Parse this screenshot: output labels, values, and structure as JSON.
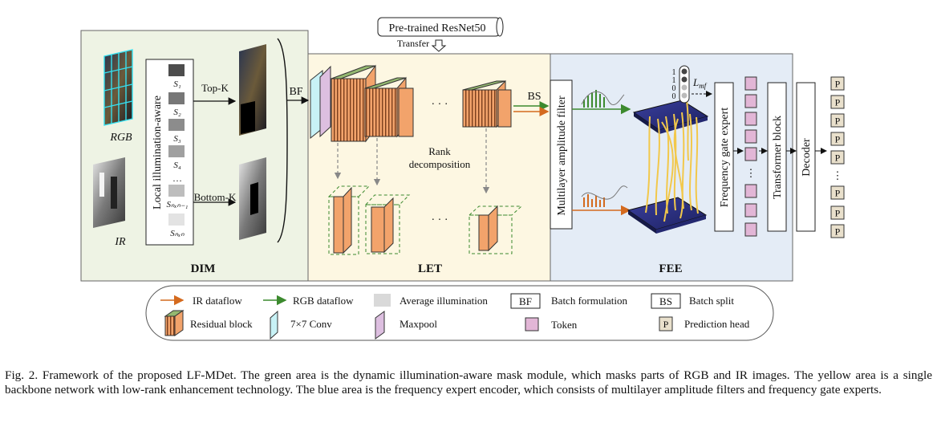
{
  "pretrained": {
    "label": "Pre-trained ResNet50",
    "transfer": "Transfer"
  },
  "dim": {
    "title": "DIM",
    "rgb_label": "RGB",
    "ir_label": "IR",
    "module_label": "Local illumination-aware",
    "scores": [
      "S₁",
      "S₂",
      "S₃",
      "S₄",
      "…",
      "Sₙₓₙ₋₁",
      "Sₙₓₙ"
    ],
    "topk": "Top-K",
    "bottomk": "Bottom-K",
    "bf": "BF"
  },
  "let": {
    "title": "LET",
    "rank_decomp": [
      "Rank",
      "decomposition"
    ],
    "dots": "·  ·  ·",
    "bs": "BS"
  },
  "fee": {
    "title": "FEE",
    "maf": "Multilayer amplitude filter",
    "fge": "Frequency gate expert",
    "transformer": "Transformer block",
    "decoder": "Decoder",
    "lmf": "L",
    "lmf_sub": "mf",
    "bits": [
      "1",
      "1",
      "0",
      "0"
    ],
    "p": "P"
  },
  "legend": {
    "ir_dataflow": "IR dataflow",
    "rgb_dataflow": "RGB dataflow",
    "avg_illum": "Average illumination",
    "bf_key": "BF",
    "bf_desc": "Batch formulation",
    "bs_key": "BS",
    "bs_desc": "Batch split",
    "residual": "Residual block",
    "conv": "7×7 Conv",
    "maxpool": "Maxpool",
    "token": "Token",
    "p_key": "P",
    "pred_head": "Prediction head"
  },
  "caption": "Fig. 2.  Framework of the proposed LF-MDet. The green area is the dynamic illumination-aware mask module, which masks parts of RGB and IR images. The yellow area is a single backbone network with low-rank enhancement technology. The blue area is the frequency expert encoder, which consists of multilayer amplitude filters and frequency gate experts.",
  "colors": {
    "dim_bg": "#eef3e4",
    "let_bg": "#fdf7e2",
    "fee_bg": "#e4ecf6",
    "ir_arrow": "#d46a1e",
    "rgb_arrow": "#3c8a2e",
    "token": "#e2b6d6",
    "orange": "#f2a36b"
  }
}
